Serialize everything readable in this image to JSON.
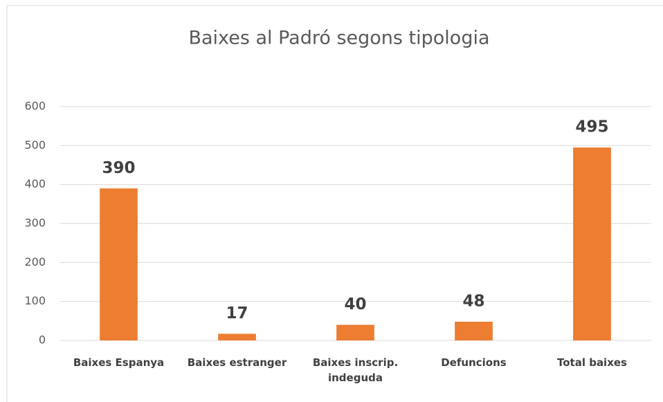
{
  "chart_data": {
    "type": "bar",
    "title": "Baixes al Padró segons tipologia",
    "categories": [
      "Baixes Espanya",
      "Baixes estranger",
      "Baixes inscrip. indeguda",
      "Defuncions",
      "Total baixes"
    ],
    "values": [
      390,
      17,
      40,
      48,
      495
    ],
    "color": "#ed7d31",
    "ylim": [
      0,
      600
    ],
    "yticks": [
      0,
      100,
      200,
      300,
      400,
      500,
      600
    ],
    "grid": true
  }
}
